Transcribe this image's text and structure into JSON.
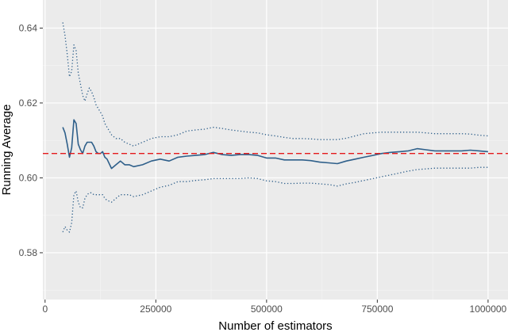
{
  "chart_data": {
    "type": "line",
    "title": "",
    "xlabel": "Number of estimators",
    "ylabel": "Running Average",
    "xlim": [
      -5000,
      1045000
    ],
    "ylim": [
      0.5675,
      0.6475
    ],
    "x_ticks": [
      0,
      250000,
      500000,
      750000,
      1000000
    ],
    "x_tick_labels": [
      "0",
      "250000",
      "500000",
      "750000",
      "1000000"
    ],
    "y_ticks": [
      0.58,
      0.6,
      0.62,
      0.64
    ],
    "y_tick_labels": [
      "0.58",
      "0.60",
      "0.62",
      "0.64"
    ],
    "grid": true,
    "background": "#ebebeb",
    "reference_line": {
      "y": 0.6065,
      "color": "#e41a1c",
      "style": "dashed"
    },
    "series": [
      {
        "style": "solid",
        "color": "#2e5f8a",
        "x": [
          40000,
          45000,
          50000,
          55000,
          60000,
          65000,
          70000,
          75000,
          80000,
          85000,
          90000,
          95000,
          100000,
          105000,
          110000,
          115000,
          120000,
          125000,
          130000,
          135000,
          140000,
          150000,
          160000,
          170000,
          180000,
          190000,
          200000,
          220000,
          240000,
          260000,
          280000,
          300000,
          320000,
          340000,
          360000,
          380000,
          400000,
          420000,
          440000,
          460000,
          480000,
          500000,
          520000,
          540000,
          560000,
          580000,
          600000,
          620000,
          640000,
          660000,
          680000,
          700000,
          720000,
          740000,
          760000,
          780000,
          800000,
          820000,
          840000,
          860000,
          880000,
          900000,
          920000,
          940000,
          960000,
          980000,
          1000000
        ],
        "y": [
          0.6135,
          0.612,
          0.609,
          0.6055,
          0.608,
          0.6155,
          0.6145,
          0.609,
          0.6075,
          0.6065,
          0.6085,
          0.6095,
          0.6095,
          0.6095,
          0.6085,
          0.607,
          0.6065,
          0.6065,
          0.607,
          0.6055,
          0.605,
          0.6025,
          0.6035,
          0.6045,
          0.6035,
          0.6035,
          0.603,
          0.6035,
          0.6045,
          0.605,
          0.6045,
          0.6055,
          0.6058,
          0.606,
          0.6062,
          0.6068,
          0.6062,
          0.606,
          0.6062,
          0.6062,
          0.606,
          0.6053,
          0.6053,
          0.6048,
          0.6048,
          0.6048,
          0.6046,
          0.6042,
          0.604,
          0.6038,
          0.6045,
          0.605,
          0.6055,
          0.606,
          0.6065,
          0.6068,
          0.607,
          0.6072,
          0.6078,
          0.6075,
          0.6072,
          0.6072,
          0.6072,
          0.6072,
          0.6074,
          0.6072,
          0.607
        ]
      },
      {
        "style": "dotted",
        "color": "#2e5f8a",
        "x": [
          40000,
          45000,
          50000,
          55000,
          60000,
          65000,
          70000,
          75000,
          80000,
          85000,
          90000,
          95000,
          100000,
          105000,
          110000,
          115000,
          120000,
          125000,
          130000,
          135000,
          140000,
          150000,
          160000,
          170000,
          180000,
          190000,
          200000,
          220000,
          240000,
          260000,
          280000,
          300000,
          320000,
          340000,
          360000,
          380000,
          400000,
          420000,
          440000,
          460000,
          480000,
          500000,
          520000,
          540000,
          560000,
          580000,
          600000,
          620000,
          640000,
          660000,
          680000,
          700000,
          720000,
          740000,
          760000,
          780000,
          800000,
          820000,
          840000,
          860000,
          880000,
          900000,
          920000,
          940000,
          960000,
          980000,
          1000000
        ],
        "y": [
          0.6415,
          0.638,
          0.633,
          0.627,
          0.6285,
          0.6355,
          0.634,
          0.628,
          0.625,
          0.622,
          0.6205,
          0.6225,
          0.624,
          0.623,
          0.6215,
          0.6195,
          0.6185,
          0.6175,
          0.6165,
          0.6145,
          0.6135,
          0.6115,
          0.6105,
          0.6105,
          0.6095,
          0.609,
          0.6085,
          0.6095,
          0.6105,
          0.611,
          0.611,
          0.6115,
          0.6125,
          0.6128,
          0.613,
          0.6135,
          0.6132,
          0.6128,
          0.6125,
          0.6122,
          0.612,
          0.6115,
          0.6112,
          0.6108,
          0.6105,
          0.6105,
          0.6104,
          0.6102,
          0.6102,
          0.6102,
          0.6106,
          0.6112,
          0.6118,
          0.612,
          0.6122,
          0.6122,
          0.6122,
          0.6122,
          0.6122,
          0.612,
          0.6118,
          0.6118,
          0.6118,
          0.6118,
          0.6117,
          0.6114,
          0.6112
        ]
      },
      {
        "style": "dotted",
        "color": "#2e5f8a",
        "x": [
          40000,
          45000,
          50000,
          55000,
          60000,
          65000,
          70000,
          75000,
          80000,
          85000,
          90000,
          95000,
          100000,
          105000,
          110000,
          115000,
          120000,
          125000,
          130000,
          135000,
          140000,
          150000,
          160000,
          170000,
          180000,
          190000,
          200000,
          220000,
          240000,
          260000,
          280000,
          300000,
          320000,
          340000,
          360000,
          380000,
          400000,
          420000,
          440000,
          460000,
          480000,
          500000,
          520000,
          540000,
          560000,
          580000,
          600000,
          620000,
          640000,
          660000,
          680000,
          700000,
          720000,
          740000,
          760000,
          780000,
          800000,
          820000,
          840000,
          860000,
          880000,
          900000,
          920000,
          940000,
          960000,
          980000,
          1000000
        ],
        "y": [
          0.5855,
          0.587,
          0.586,
          0.5855,
          0.588,
          0.5955,
          0.5965,
          0.5935,
          0.592,
          0.592,
          0.5945,
          0.5955,
          0.596,
          0.596,
          0.5955,
          0.5955,
          0.5955,
          0.5955,
          0.5955,
          0.5945,
          0.594,
          0.5935,
          0.5945,
          0.5955,
          0.5955,
          0.5955,
          0.595,
          0.5955,
          0.5965,
          0.5975,
          0.598,
          0.599,
          0.599,
          0.5993,
          0.5995,
          0.5998,
          0.5998,
          0.5998,
          0.5998,
          0.6,
          0.5998,
          0.5992,
          0.599,
          0.5985,
          0.5985,
          0.5986,
          0.5986,
          0.5984,
          0.5982,
          0.5978,
          0.5984,
          0.5988,
          0.5993,
          0.5998,
          0.6003,
          0.6008,
          0.6013,
          0.6018,
          0.6022,
          0.6024,
          0.6026,
          0.6026,
          0.6026,
          0.6026,
          0.6026,
          0.6028,
          0.6028
        ]
      }
    ]
  }
}
